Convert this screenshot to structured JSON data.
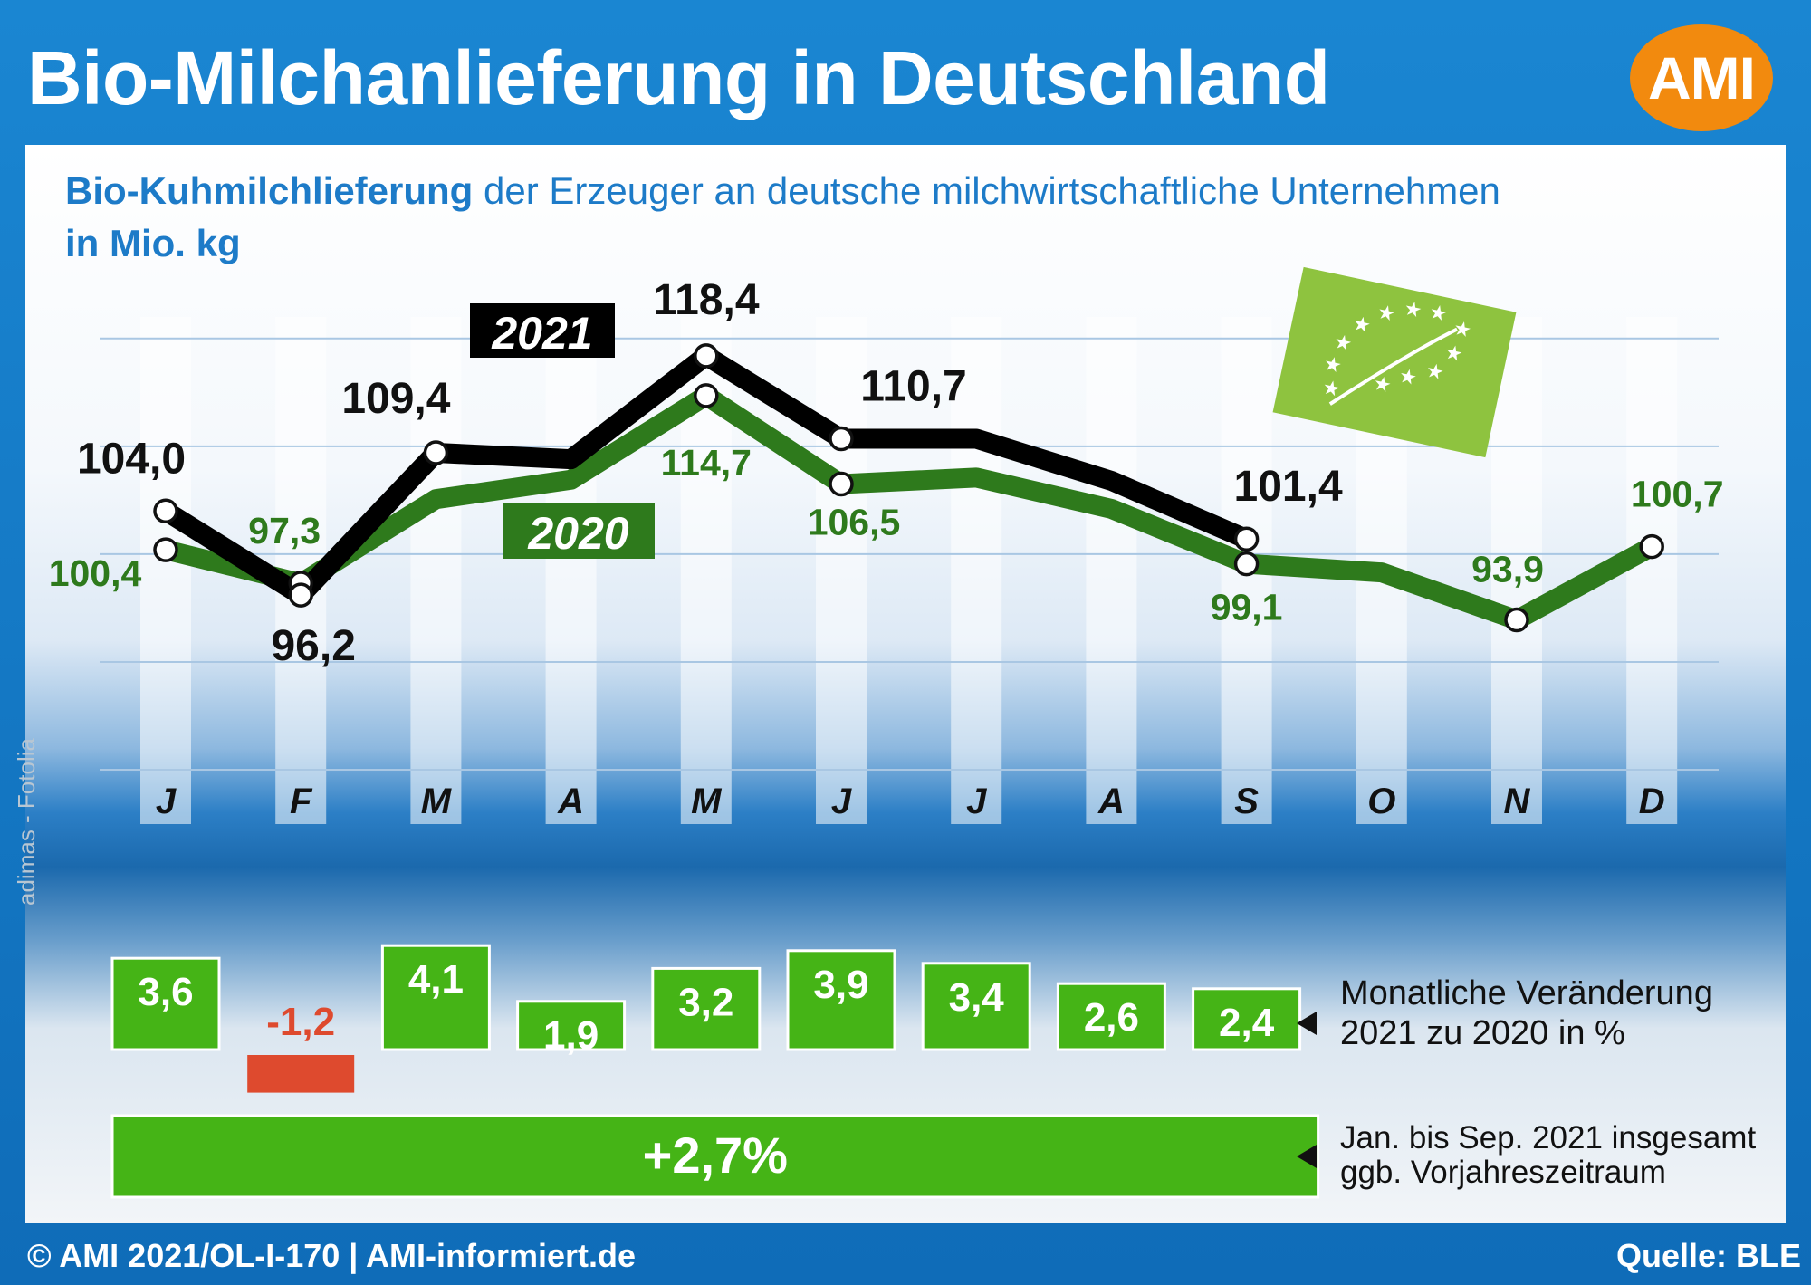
{
  "header": {
    "title": "Bio-Milchanlieferung in Deutschland",
    "logo": "AMI"
  },
  "subtitle": {
    "bold": "Bio-Kuhmilchlieferung",
    "rest": " der Erzeuger an deutsche milchwirtschaftliche Unternehmen",
    "unit": "in Mio. kg"
  },
  "footer": {
    "copyright": "© AMI 2021/OL-I-170 | AMI-informiert.de",
    "source": "Quelle: BLE"
  },
  "credit": "adimas - Fotolia",
  "side_labels": {
    "monthly": [
      "Monatliche Veränderung",
      "2021 zu 2020 in %"
    ],
    "total": [
      "Jan. bis Sep. 2021 insgesamt",
      "ggb. Vorjahreszeitraum"
    ]
  },
  "colors": {
    "series_2021": "#000000",
    "series_2020": "#2e7a1c",
    "label_2020": "#2e7a1c",
    "bar_positive": "#45b416",
    "bar_negative": "#de4a2e",
    "accent": "#1d7bc8",
    "logo": "#f28a0e"
  },
  "chart_data": [
    {
      "type": "line",
      "categories": [
        "J",
        "F",
        "M",
        "A",
        "M",
        "J",
        "J",
        "A",
        "S",
        "O",
        "N",
        "D"
      ],
      "series": [
        {
          "name": "2021",
          "values": [
            104.0,
            96.2,
            109.4,
            108.8,
            118.4,
            110.7,
            110.7,
            106.8,
            101.4,
            null,
            null,
            null
          ],
          "labels": [
            "104,0",
            "96,2",
            "109,4",
            "",
            "118,4",
            "110,7",
            "",
            "",
            "101,4",
            "",
            "",
            ""
          ]
        },
        {
          "name": "2020",
          "values": [
            100.4,
            97.3,
            105.1,
            106.9,
            114.7,
            106.5,
            107.1,
            104.2,
            99.1,
            98.3,
            93.9,
            100.7
          ],
          "labels": [
            "100,4",
            "97,3",
            "",
            "",
            "114,7",
            "106,5",
            "",
            "",
            "99,1",
            "",
            "93,9",
            "100,7"
          ]
        }
      ],
      "marked_points": {
        "2021": [
          0,
          1,
          2,
          4,
          5,
          8
        ],
        "2020": [
          0,
          1,
          4,
          5,
          8,
          10,
          11
        ]
      },
      "ylim": [
        80,
        122
      ],
      "grid": true
    },
    {
      "type": "bar",
      "categories": [
        "J",
        "F",
        "M",
        "A",
        "M",
        "J",
        "J",
        "A",
        "S"
      ],
      "values": [
        3.6,
        -1.2,
        4.1,
        1.9,
        3.2,
        3.9,
        3.4,
        2.6,
        2.4
      ],
      "labels": [
        "3,6",
        "-1,2",
        "4,1",
        "1,9",
        "3,2",
        "3,9",
        "3,4",
        "2,6",
        "2,4"
      ]
    },
    {
      "type": "bar",
      "categories": [
        "Jan. bis Sep. 2021"
      ],
      "values": [
        2.7
      ],
      "labels": [
        "+2,7%"
      ]
    }
  ]
}
